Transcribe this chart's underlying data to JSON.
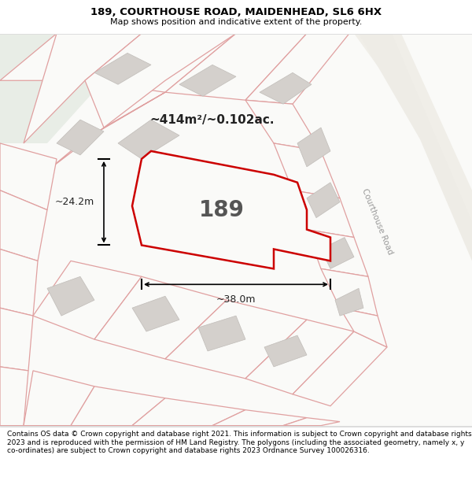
{
  "title_line1": "189, COURTHOUSE ROAD, MAIDENHEAD, SL6 6HX",
  "title_line2": "Map shows position and indicative extent of the property.",
  "footer_text": "Contains OS data © Crown copyright and database right 2021. This information is subject to Crown copyright and database rights 2023 and is reproduced with the permission of HM Land Registry. The polygons (including the associated geometry, namely x, y co-ordinates) are subject to Crown copyright and database rights 2023 Ordnance Survey 100026316.",
  "area_label": "~414m²/~0.102ac.",
  "property_number": "189",
  "dim_width": "~38.0m",
  "dim_height": "~24.2m",
  "plot_edge": "#cc0000",
  "road_label": "Courthouse Road",
  "parcel_edge": "#e8a0a0",
  "parcel_fill": "#ffffff",
  "building_fill": "#d8d8d8",
  "building_edge": "#c0c0c0",
  "map_bg": "#f8f6f4",
  "road_fill": "#f0eeec",
  "green_area": "#e8ede8"
}
